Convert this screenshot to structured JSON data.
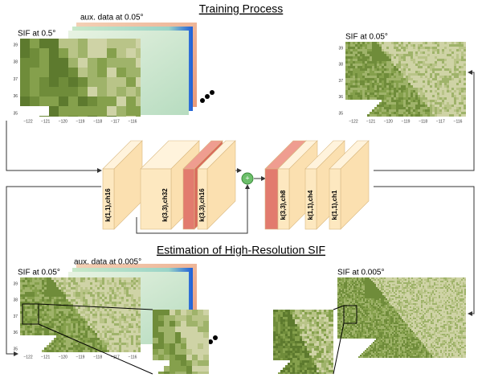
{
  "training": {
    "title": "Training Process",
    "input": {
      "title": "SIF at 0.5°",
      "aux": "aux. data at 0.05°",
      "yticks": [
        "39",
        "38",
        "37",
        "36",
        "35"
      ],
      "xticks": [
        "−122",
        "−121",
        "−120",
        "−119",
        "−118",
        "−117",
        "−116"
      ]
    },
    "target": {
      "title": "SIF at 0.05°",
      "yticks": [
        "39",
        "38",
        "37",
        "36",
        "35"
      ],
      "xticks": [
        "−122",
        "−121",
        "−120",
        "−119",
        "−118",
        "−117",
        "−116"
      ]
    }
  },
  "network": {
    "layers": [
      "k(1,1),ch16",
      "k(3,3),ch32",
      "k(3,3),ch16",
      "k(3,3),ch8",
      "k(1,1),ch4",
      "k(1,1),ch1"
    ]
  },
  "estimation": {
    "title": "Estimation of High-Resolution SIF",
    "input": {
      "title": "SIF at 0.05°",
      "aux": "aux. data at 0.005°",
      "yticks": [
        "39",
        "38",
        "37",
        "36",
        "35"
      ],
      "xticks": [
        "−122",
        "−121",
        "−120",
        "−119",
        "−118",
        "−117",
        "−116"
      ]
    },
    "output": {
      "title": "SIF at 0.005°"
    }
  }
}
